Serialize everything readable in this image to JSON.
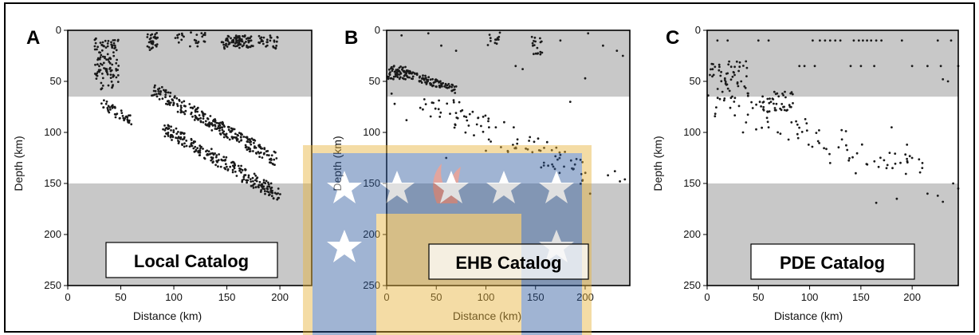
{
  "colors": {
    "shade": "#c8c8c8",
    "point": "#1a1a1a",
    "watermark_blue": "#2e5a9e",
    "watermark_gold": "#e8b33a",
    "watermark_red": "#c0392b"
  },
  "watermark": {
    "type": "university-seal-logo"
  },
  "chart_data": [
    {
      "type": "scatter",
      "panel_letter": "A",
      "catalog_label": "Local Catalog",
      "xlabel": "Distance (km)",
      "ylabel": "Depth (km)",
      "xlim": [
        0,
        230
      ],
      "ylim": [
        250,
        0
      ],
      "y_inverted": true,
      "xticks": [
        0,
        50,
        100,
        150,
        200
      ],
      "yticks": [
        0,
        50,
        100,
        150,
        200,
        250
      ],
      "shaded_depth_bands": [
        [
          0,
          65
        ],
        [
          150,
          250
        ]
      ],
      "clusters": [
        {
          "x": [
            25,
            48
          ],
          "y": [
            8,
            58
          ],
          "n": 110,
          "seed": 11
        },
        {
          "x": [
            75,
            85
          ],
          "y": [
            2,
            20
          ],
          "n": 30,
          "seed": 12
        },
        {
          "x": [
            100,
            130
          ],
          "y": [
            2,
            18
          ],
          "n": 25,
          "seed": 13
        },
        {
          "x": [
            145,
            175
          ],
          "y": [
            5,
            18
          ],
          "n": 90,
          "seed": 14
        },
        {
          "x": [
            180,
            198
          ],
          "y": [
            5,
            18
          ],
          "n": 30,
          "seed": 15
        }
      ],
      "bands": [
        {
          "x0": 80,
          "y0": 58,
          "x1": 197,
          "y1": 127,
          "width": 7,
          "n": 260,
          "seed": 21
        },
        {
          "x0": 33,
          "y0": 73,
          "x1": 60,
          "y1": 88,
          "width": 5,
          "n": 45,
          "seed": 22
        },
        {
          "x0": 90,
          "y0": 96,
          "x1": 200,
          "y1": 162,
          "width": 7,
          "n": 230,
          "seed": 23
        }
      ],
      "points": []
    },
    {
      "type": "scatter",
      "panel_letter": "B",
      "catalog_label": "EHB Catalog",
      "xlabel": "Distance (km)",
      "ylabel": "Depth (km)",
      "xlim": [
        0,
        245
      ],
      "ylim": [
        250,
        0
      ],
      "y_inverted": true,
      "xticks": [
        0,
        50,
        100,
        150,
        200
      ],
      "yticks": [
        0,
        50,
        100,
        150,
        200,
        250
      ],
      "shaded_depth_bands": [
        [
          0,
          65
        ],
        [
          150,
          250
        ]
      ],
      "clusters": [
        {
          "x": [
            0,
            20
          ],
          "y": [
            35,
            48
          ],
          "n": 40,
          "seed": 31
        },
        {
          "x": [
            100,
            115
          ],
          "y": [
            2,
            15
          ],
          "n": 12,
          "seed": 32
        },
        {
          "x": [
            145,
            158
          ],
          "y": [
            5,
            25
          ],
          "n": 18,
          "seed": 33
        }
      ],
      "bands": [
        {
          "x0": 5,
          "y0": 38,
          "x1": 70,
          "y1": 58,
          "width": 4,
          "n": 120,
          "seed": 41
        },
        {
          "x0": 30,
          "y0": 65,
          "x1": 200,
          "y1": 140,
          "width": 14,
          "n": 95,
          "seed": 42
        }
      ],
      "points": [
        [
          15,
          5
        ],
        [
          42,
          3
        ],
        [
          55,
          15
        ],
        [
          70,
          20
        ],
        [
          130,
          35
        ],
        [
          137,
          38
        ],
        [
          175,
          10
        ],
        [
          200,
          47
        ],
        [
          203,
          3
        ],
        [
          218,
          15
        ],
        [
          232,
          20
        ],
        [
          238,
          25
        ],
        [
          5,
          62
        ],
        [
          60,
          125
        ],
        [
          205,
          160
        ],
        [
          223,
          142
        ],
        [
          230,
          138
        ],
        [
          235,
          148
        ],
        [
          240,
          146
        ],
        [
          185,
          70
        ],
        [
          110,
          95
        ],
        [
          20,
          88
        ],
        [
          8,
          72
        ],
        [
          100,
          118
        ],
        [
          155,
          118
        ],
        [
          175,
          122
        ]
      ]
    },
    {
      "type": "scatter",
      "panel_letter": "C",
      "catalog_label": "PDE Catalog",
      "xlabel": "Distance (km)",
      "ylabel": "Depth (km)",
      "xlim": [
        0,
        245
      ],
      "ylim": [
        250,
        0
      ],
      "y_inverted": true,
      "xticks": [
        0,
        50,
        100,
        150,
        200
      ],
      "yticks": [
        0,
        50,
        100,
        150,
        200,
        250
      ],
      "shaded_depth_bands": [
        [
          0,
          65
        ],
        [
          150,
          250
        ]
      ],
      "clusters": [
        {
          "x": [
            0,
            40
          ],
          "y": [
            30,
            70
          ],
          "n": 60,
          "seed": 51
        },
        {
          "x": [
            50,
            85
          ],
          "y": [
            60,
            80
          ],
          "n": 45,
          "seed": 52
        }
      ],
      "bands": [
        {
          "x0": 5,
          "y0": 70,
          "x1": 210,
          "y1": 135,
          "width": 16,
          "n": 70,
          "seed": 61
        }
      ],
      "points": [
        [
          10,
          10
        ],
        [
          20,
          10
        ],
        [
          50,
          10
        ],
        [
          60,
          10
        ],
        [
          90,
          35
        ],
        [
          95,
          35
        ],
        [
          103,
          10
        ],
        [
          110,
          10
        ],
        [
          115,
          10
        ],
        [
          120,
          10
        ],
        [
          125,
          10
        ],
        [
          130,
          10
        ],
        [
          143,
          10
        ],
        [
          148,
          10
        ],
        [
          152,
          10
        ],
        [
          156,
          10
        ],
        [
          160,
          10
        ],
        [
          165,
          10
        ],
        [
          170,
          10
        ],
        [
          190,
          10
        ],
        [
          225,
          10
        ],
        [
          238,
          10
        ],
        [
          105,
          35
        ],
        [
          140,
          35
        ],
        [
          150,
          35
        ],
        [
          163,
          35
        ],
        [
          200,
          35
        ],
        [
          215,
          35
        ],
        [
          228,
          35
        ],
        [
          245,
          35
        ],
        [
          230,
          48
        ],
        [
          235,
          50
        ],
        [
          180,
          95
        ],
        [
          178,
          120
        ],
        [
          195,
          112
        ],
        [
          200,
          125
        ],
        [
          210,
          130
        ],
        [
          185,
          165
        ],
        [
          215,
          160
        ],
        [
          225,
          162
        ],
        [
          230,
          168
        ],
        [
          240,
          150
        ],
        [
          245,
          155
        ],
        [
          165,
          169
        ],
        [
          175,
          135
        ],
        [
          145,
          140
        ],
        [
          120,
          130
        ],
        [
          60,
          95
        ],
        [
          35,
          100
        ]
      ]
    }
  ]
}
